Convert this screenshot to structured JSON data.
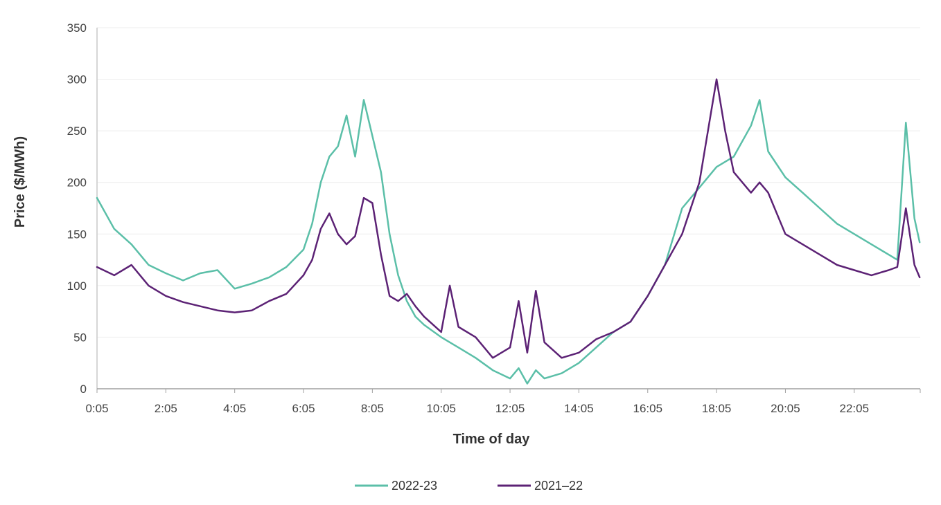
{
  "chart_data": {
    "type": "line",
    "title": "",
    "xlabel": "Time of day",
    "ylabel": "Price ($/MWh)",
    "ylim": [
      0,
      350
    ],
    "y_ticks": [
      "0",
      "50",
      "100",
      "150",
      "200",
      "250",
      "300",
      "350"
    ],
    "x_ticks": [
      "0:05",
      "2:05",
      "4:05",
      "6:05",
      "8:05",
      "10:05",
      "12:05",
      "14:05",
      "16:05",
      "18:05",
      "20:05",
      "22:05"
    ],
    "grid": "horizontal",
    "legend_position": "bottom",
    "series": [
      {
        "name": "2022-23",
        "color": "#5bbfa8",
        "x": [
          "0:05",
          "0:35",
          "1:05",
          "1:35",
          "2:05",
          "2:35",
          "3:05",
          "3:35",
          "4:05",
          "4:35",
          "5:05",
          "5:35",
          "6:05",
          "6:20",
          "6:35",
          "6:50",
          "7:05",
          "7:20",
          "7:35",
          "7:50",
          "8:05",
          "8:20",
          "8:35",
          "8:50",
          "9:05",
          "9:20",
          "9:35",
          "10:05",
          "10:35",
          "11:05",
          "11:35",
          "12:05",
          "12:20",
          "12:35",
          "12:50",
          "13:05",
          "13:35",
          "14:05",
          "14:35",
          "15:05",
          "15:35",
          "16:05",
          "16:35",
          "17:05",
          "17:35",
          "18:05",
          "18:35",
          "19:05",
          "19:20",
          "19:35",
          "20:05",
          "20:35",
          "21:05",
          "21:35",
          "22:05",
          "22:35",
          "23:05",
          "23:20",
          "23:35",
          "23:50",
          "23:59"
        ],
        "values": [
          185,
          155,
          140,
          120,
          112,
          105,
          112,
          115,
          97,
          102,
          108,
          118,
          135,
          160,
          200,
          225,
          235,
          265,
          225,
          280,
          245,
          210,
          150,
          110,
          85,
          70,
          62,
          50,
          40,
          30,
          18,
          10,
          20,
          5,
          18,
          10,
          15,
          25,
          40,
          55,
          65,
          90,
          120,
          175,
          195,
          215,
          225,
          255,
          280,
          230,
          205,
          190,
          175,
          160,
          150,
          140,
          130,
          125,
          258,
          165,
          142
        ]
      },
      {
        "name": "2021–22",
        "color": "#5c2275",
        "x": [
          "0:05",
          "0:35",
          "1:05",
          "1:35",
          "2:05",
          "2:35",
          "3:05",
          "3:35",
          "4:05",
          "4:35",
          "5:05",
          "5:35",
          "6:05",
          "6:20",
          "6:35",
          "6:50",
          "7:05",
          "7:20",
          "7:35",
          "7:50",
          "8:05",
          "8:20",
          "8:35",
          "8:50",
          "9:05",
          "9:20",
          "9:35",
          "10:05",
          "10:20",
          "10:35",
          "11:05",
          "11:35",
          "12:05",
          "12:20",
          "12:35",
          "12:50",
          "13:05",
          "13:35",
          "14:05",
          "14:35",
          "15:05",
          "15:35",
          "16:05",
          "16:35",
          "17:05",
          "17:35",
          "17:50",
          "18:05",
          "18:20",
          "18:35",
          "19:05",
          "19:20",
          "19:35",
          "20:05",
          "20:35",
          "21:05",
          "21:35",
          "22:05",
          "22:35",
          "23:05",
          "23:20",
          "23:35",
          "23:50",
          "23:59"
        ],
        "values": [
          118,
          110,
          120,
          100,
          90,
          84,
          80,
          76,
          74,
          76,
          85,
          92,
          110,
          125,
          155,
          170,
          150,
          140,
          148,
          185,
          180,
          130,
          90,
          85,
          92,
          80,
          70,
          55,
          100,
          60,
          50,
          30,
          40,
          85,
          35,
          95,
          45,
          30,
          35,
          48,
          55,
          65,
          90,
          120,
          150,
          200,
          250,
          300,
          250,
          210,
          190,
          200,
          190,
          150,
          140,
          130,
          120,
          115,
          110,
          115,
          118,
          175,
          120,
          108
        ]
      }
    ]
  }
}
